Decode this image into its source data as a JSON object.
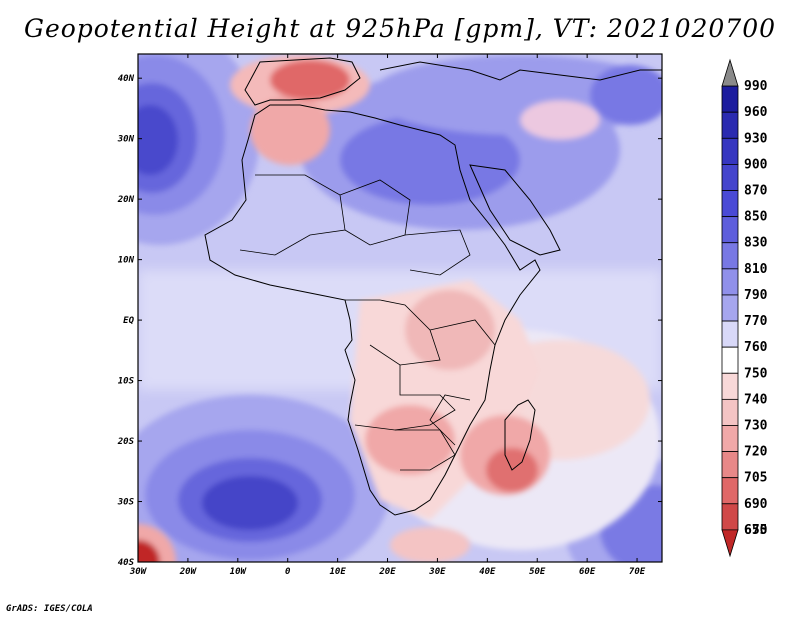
{
  "title": "Geopotential Height at 925hPa [gpm], VT: 2021020700",
  "credit": "GrADS: IGES/COLA",
  "map": {
    "lat_labels": [
      "40N",
      "30N",
      "20N",
      "10N",
      "EQ",
      "10S",
      "20S",
      "30S",
      "40S"
    ],
    "lon_labels": [
      "30W",
      "20W",
      "10W",
      "0",
      "10E",
      "20E",
      "30E",
      "40E",
      "50E",
      "60E",
      "70E"
    ],
    "lat_range": [
      -40,
      44
    ],
    "lon_range": [
      -30,
      75
    ]
  },
  "colorbar": {
    "labels": [
      "990",
      "960",
      "930",
      "900",
      "870",
      "850",
      "830",
      "810",
      "790",
      "770",
      "760",
      "750",
      "740",
      "730",
      "720",
      "705",
      "690",
      "675",
      "650"
    ],
    "colors": {
      "dark_blue": "#1c1c9e",
      "mid_blue": "#4a4ad6",
      "blue": "#7878e4",
      "light_blue": "#a6a6ee",
      "pale_blue": "#d8d8f8",
      "white": "#ffffff",
      "pale_red": "#f8d8d8",
      "light_red": "#f0a8a8",
      "red": "#e06868",
      "dark_red": "#c02828"
    }
  }
}
